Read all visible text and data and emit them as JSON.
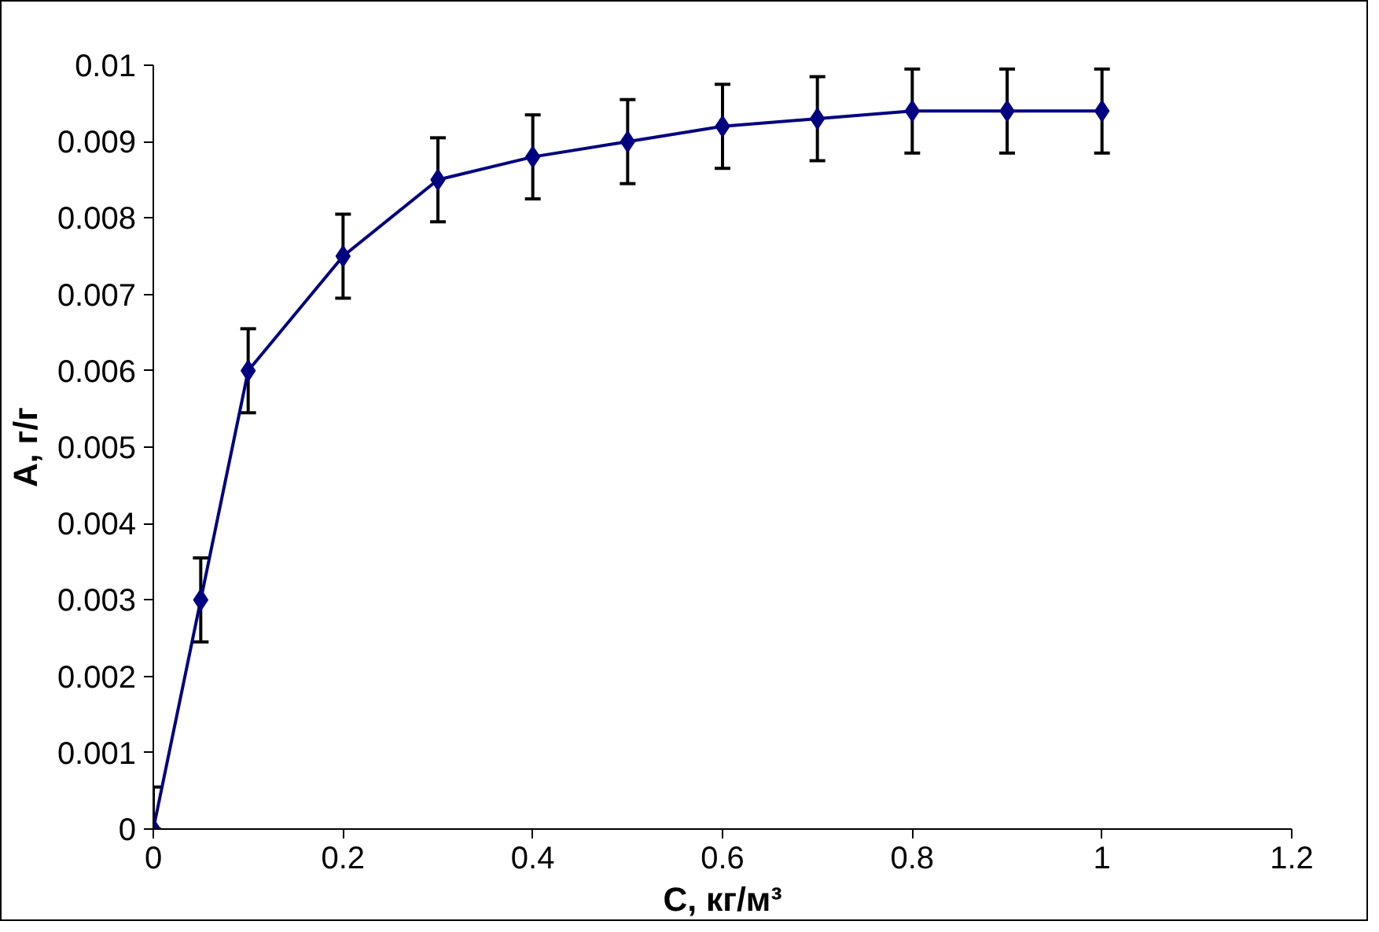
{
  "chart_data": {
    "type": "line",
    "xlabel": "C, кг/м³",
    "ylabel": "A, г/г",
    "x": [
      0,
      0.05,
      0.1,
      0.2,
      0.3,
      0.4,
      0.5,
      0.6,
      0.7,
      0.8,
      0.9,
      1.0
    ],
    "series": [
      {
        "color": "#000080",
        "values": [
          0,
          0.003,
          0.006,
          0.0075,
          0.0085,
          0.0088,
          0.009,
          0.0092,
          0.0093,
          0.0094,
          0.0094,
          0.0094
        ],
        "errors": [
          [
            0,
            0.00055
          ],
          0.00055,
          0.00055,
          0.00055,
          0.00055,
          0.00055,
          0.00055,
          0.00055,
          0.00055,
          0.00055,
          0.00055,
          0.00055
        ]
      }
    ],
    "xlim": [
      0,
      1.2
    ],
    "xticks": [
      0,
      0.2,
      0.4,
      0.6,
      0.8,
      1,
      1.2
    ],
    "ylim": [
      0,
      0.01
    ],
    "yticks": [
      0,
      0.001,
      0.002,
      0.003,
      0.004,
      0.005,
      0.006,
      0.007,
      0.008,
      0.009,
      0.01
    ],
    "grid": false,
    "marker": "diamond",
    "line_style": "solid"
  }
}
